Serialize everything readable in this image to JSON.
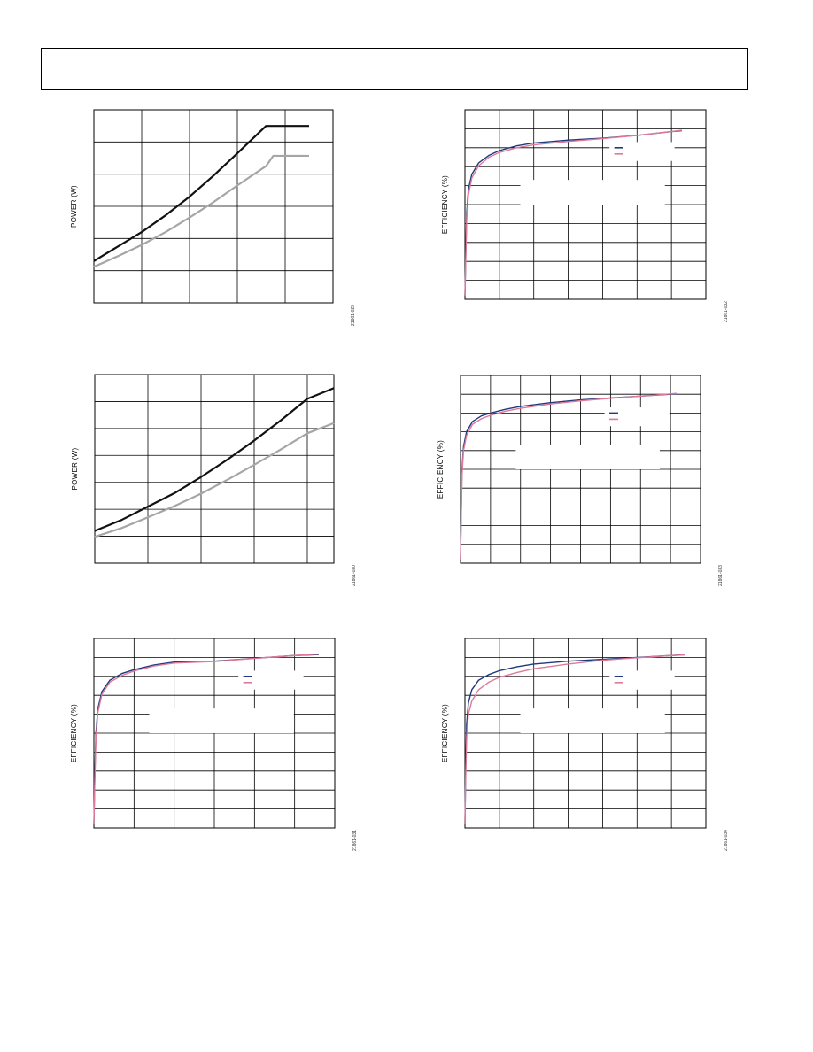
{
  "chart_data": [
    {
      "id": "chart1",
      "type": "line",
      "ylabel": "POWER (W)",
      "figure_id": "21861-029",
      "xlim": [
        0,
        5
      ],
      "ylim": [
        0,
        6
      ],
      "x_gridlines": [
        1,
        2,
        3,
        4
      ],
      "y_gridlines": [
        1,
        2,
        3,
        4,
        5
      ],
      "series": [
        {
          "color": "#111111",
          "points": [
            [
              0,
              1.3
            ],
            [
              0.5,
              1.75
            ],
            [
              1,
              2.2
            ],
            [
              1.5,
              2.72
            ],
            [
              2,
              3.3
            ],
            [
              2.5,
              3.95
            ],
            [
              3,
              4.65
            ],
            [
              3.6,
              5.5
            ],
            [
              4.5,
              5.5
            ]
          ]
        },
        {
          "color": "#a6a6a6",
          "points": [
            [
              0,
              1.12
            ],
            [
              0.5,
              1.45
            ],
            [
              1,
              1.8
            ],
            [
              1.5,
              2.2
            ],
            [
              2,
              2.65
            ],
            [
              2.5,
              3.13
            ],
            [
              3,
              3.65
            ],
            [
              3.6,
              4.25
            ],
            [
              3.75,
              4.57
            ],
            [
              4.5,
              4.57
            ]
          ]
        }
      ]
    },
    {
      "id": "chart2",
      "type": "line",
      "ylabel": "EFFICIENCY (%)",
      "figure_id": "21861-032",
      "xlim": [
        0,
        7
      ],
      "ylim": [
        0,
        100
      ],
      "x_gridlines": [
        1,
        2,
        3,
        4,
        5,
        6
      ],
      "y_gridlines": [
        10,
        20,
        30,
        40,
        50,
        60,
        70,
        80,
        90
      ],
      "legend": {
        "position": "top-right",
        "colors": [
          "#1f3a7a",
          "#e0789a"
        ]
      },
      "series": [
        {
          "color": "#1f3a7a",
          "points": [
            [
              0,
              2
            ],
            [
              0.02,
              20
            ],
            [
              0.05,
              45
            ],
            [
              0.1,
              58
            ],
            [
              0.2,
              66
            ],
            [
              0.4,
              72
            ],
            [
              0.7,
              76
            ],
            [
              1,
              78.5
            ],
            [
              1.5,
              81
            ],
            [
              2,
              82.5
            ],
            [
              3,
              84
            ],
            [
              4,
              85
            ],
            [
              5,
              86.5
            ],
            [
              6,
              88.5
            ],
            [
              6.3,
              89
            ]
          ]
        },
        {
          "color": "#e0789a",
          "points": [
            [
              0,
              2
            ],
            [
              0.02,
              18
            ],
            [
              0.05,
              42
            ],
            [
              0.1,
              55
            ],
            [
              0.2,
              64
            ],
            [
              0.4,
              70.5
            ],
            [
              0.7,
              75
            ],
            [
              1,
              77.5
            ],
            [
              1.5,
              80
            ],
            [
              2,
              81.5
            ],
            [
              3,
              83.3
            ],
            [
              4,
              84.8
            ],
            [
              5,
              86.5
            ],
            [
              6,
              88.5
            ],
            [
              6.3,
              89.3
            ]
          ]
        }
      ]
    },
    {
      "id": "chart3",
      "type": "line",
      "ylabel": "POWER (W)",
      "figure_id": "21861-030",
      "xlim": [
        0,
        4.5
      ],
      "ylim": [
        0,
        7
      ],
      "x_gridlines": [
        1,
        2,
        3,
        4
      ],
      "y_gridlines": [
        1,
        2,
        3,
        4,
        5,
        6
      ],
      "series": [
        {
          "color": "#111111",
          "points": [
            [
              0,
              1.2
            ],
            [
              0.5,
              1.6
            ],
            [
              1,
              2.1
            ],
            [
              1.5,
              2.6
            ],
            [
              2,
              3.2
            ],
            [
              2.5,
              3.85
            ],
            [
              3,
              4.55
            ],
            [
              3.5,
              5.3
            ],
            [
              4,
              6.1
            ],
            [
              4.5,
              6.5
            ]
          ]
        },
        {
          "color": "#a6a6a6",
          "points": [
            [
              0,
              0.98
            ],
            [
              0.5,
              1.3
            ],
            [
              1,
              1.7
            ],
            [
              1.5,
              2.12
            ],
            [
              2,
              2.58
            ],
            [
              2.5,
              3.1
            ],
            [
              3,
              3.65
            ],
            [
              3.5,
              4.22
            ],
            [
              4,
              4.82
            ],
            [
              4.5,
              5.2
            ]
          ]
        }
      ]
    },
    {
      "id": "chart4",
      "type": "line",
      "ylabel": "EFFICIENCY (%)",
      "figure_id": "21861-033",
      "xlim": [
        0,
        8
      ],
      "ylim": [
        0,
        100
      ],
      "x_gridlines": [
        1,
        2,
        3,
        4,
        5,
        6,
        7
      ],
      "y_gridlines": [
        10,
        20,
        30,
        40,
        50,
        60,
        70,
        80,
        90
      ],
      "legend": {
        "position": "top-right",
        "colors": [
          "#1f3a7a",
          "#e0789a"
        ]
      },
      "series": [
        {
          "color": "#1f3a7a",
          "points": [
            [
              0,
              2
            ],
            [
              0.02,
              25
            ],
            [
              0.05,
              50
            ],
            [
              0.1,
              62
            ],
            [
              0.2,
              70
            ],
            [
              0.4,
              75.5
            ],
            [
              0.7,
              78.5
            ],
            [
              1,
              80
            ],
            [
              1.5,
              82
            ],
            [
              2,
              83.5
            ],
            [
              3,
              85.5
            ],
            [
              4,
              87
            ],
            [
              5,
              88
            ],
            [
              6,
              89
            ],
            [
              7,
              90
            ],
            [
              7.2,
              90.2
            ]
          ]
        },
        {
          "color": "#e0789a",
          "points": [
            [
              0,
              2
            ],
            [
              0.02,
              22
            ],
            [
              0.05,
              47
            ],
            [
              0.1,
              60
            ],
            [
              0.2,
              68
            ],
            [
              0.4,
              74
            ],
            [
              0.7,
              77
            ],
            [
              1,
              78.8
            ],
            [
              1.5,
              81
            ],
            [
              2,
              82.5
            ],
            [
              3,
              84.8
            ],
            [
              4,
              86.5
            ],
            [
              5,
              87.8
            ],
            [
              6,
              89
            ],
            [
              7,
              90.2
            ],
            [
              7.2,
              90.5
            ]
          ]
        }
      ]
    },
    {
      "id": "chart5",
      "type": "line",
      "ylabel": "EFFICIENCY (%)",
      "figure_id": "21861-031",
      "xlim": [
        0,
        6
      ],
      "ylim": [
        0,
        100
      ],
      "x_gridlines": [
        1,
        2,
        3,
        4,
        5
      ],
      "y_gridlines": [
        10,
        20,
        30,
        40,
        50,
        60,
        70,
        80,
        90
      ],
      "legend": {
        "position": "top-right",
        "colors": [
          "#1f3a7a",
          "#e0789a"
        ]
      },
      "series": [
        {
          "color": "#1f3a7a",
          "points": [
            [
              0,
              2
            ],
            [
              0.02,
              25
            ],
            [
              0.05,
              50
            ],
            [
              0.1,
              63
            ],
            [
              0.2,
              72
            ],
            [
              0.4,
              78
            ],
            [
              0.7,
              81.5
            ],
            [
              1,
              83.5
            ],
            [
              1.5,
              86
            ],
            [
              2,
              87.5
            ],
            [
              3,
              88
            ],
            [
              4,
              89.5
            ],
            [
              5,
              91
            ],
            [
              5.6,
              91.5
            ]
          ]
        },
        {
          "color": "#e0789a",
          "points": [
            [
              0,
              2
            ],
            [
              0.02,
              22
            ],
            [
              0.05,
              47
            ],
            [
              0.1,
              61
            ],
            [
              0.2,
              70.5
            ],
            [
              0.4,
              77
            ],
            [
              0.7,
              80.5
            ],
            [
              1,
              82.8
            ],
            [
              1.5,
              85.5
            ],
            [
              2,
              87
            ],
            [
              3,
              87.8
            ],
            [
              4,
              89.5
            ],
            [
              5,
              91
            ],
            [
              5.6,
              91.8
            ]
          ]
        }
      ]
    },
    {
      "id": "chart6",
      "type": "line",
      "ylabel": "EFFICIENCY (%)",
      "figure_id": "21861-034",
      "xlim": [
        0,
        7
      ],
      "ylim": [
        0,
        100
      ],
      "x_gridlines": [
        1,
        2,
        3,
        4,
        5,
        6
      ],
      "y_gridlines": [
        10,
        20,
        30,
        40,
        50,
        60,
        70,
        80,
        90
      ],
      "legend": {
        "position": "top-right",
        "colors": [
          "#1f3a7a",
          "#e0789a"
        ]
      },
      "series": [
        {
          "color": "#1f3a7a",
          "points": [
            [
              0,
              2
            ],
            [
              0.02,
              30
            ],
            [
              0.05,
              55
            ],
            [
              0.1,
              66
            ],
            [
              0.2,
              73
            ],
            [
              0.4,
              78
            ],
            [
              0.7,
              81
            ],
            [
              1,
              83
            ],
            [
              1.5,
              85
            ],
            [
              2,
              86.5
            ],
            [
              3,
              88
            ],
            [
              4,
              89
            ],
            [
              5,
              90
            ],
            [
              6,
              91
            ],
            [
              6.4,
              91.5
            ]
          ]
        },
        {
          "color": "#e0789a",
          "points": [
            [
              0,
              2
            ],
            [
              0.02,
              25
            ],
            [
              0.05,
              48
            ],
            [
              0.1,
              60
            ],
            [
              0.2,
              67
            ],
            [
              0.4,
              73
            ],
            [
              0.7,
              77
            ],
            [
              1,
              79.5
            ],
            [
              1.5,
              82
            ],
            [
              2,
              84
            ],
            [
              3,
              86.5
            ],
            [
              4,
              88.5
            ],
            [
              5,
              89.8
            ],
            [
              6,
              91
            ],
            [
              6.4,
              91.3
            ]
          ]
        }
      ]
    }
  ]
}
